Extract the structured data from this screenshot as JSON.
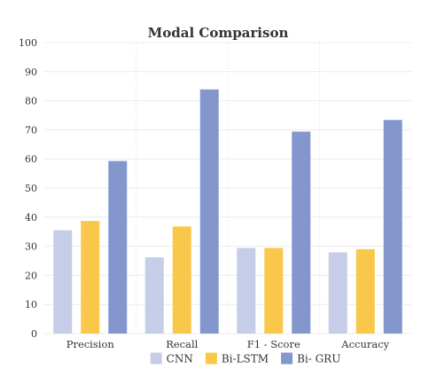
{
  "chart_data": {
    "type": "bar",
    "title": "Modal Comparison",
    "xlabel": "",
    "ylabel": "",
    "categories": [
      "Precision",
      "Recall",
      "F1 - Score",
      "Accuracy"
    ],
    "ylim": [
      0,
      100
    ],
    "yticks": [
      0,
      10,
      20,
      30,
      40,
      50,
      60,
      70,
      80,
      90,
      100
    ],
    "grid": true,
    "legend_position": "bottom",
    "series": [
      {
        "name": "CNN",
        "color": "#c5cde8",
        "values": [
          35.5,
          26.2,
          29.4,
          27.9
        ]
      },
      {
        "name": "Bi-LSTM",
        "color": "#f9c84a",
        "values": [
          38.7,
          36.8,
          29.4,
          29.0
        ]
      },
      {
        "name": "Bi- GRU",
        "color": "#8397cc",
        "values": [
          59.3,
          83.9,
          69.4,
          73.4
        ]
      }
    ]
  }
}
